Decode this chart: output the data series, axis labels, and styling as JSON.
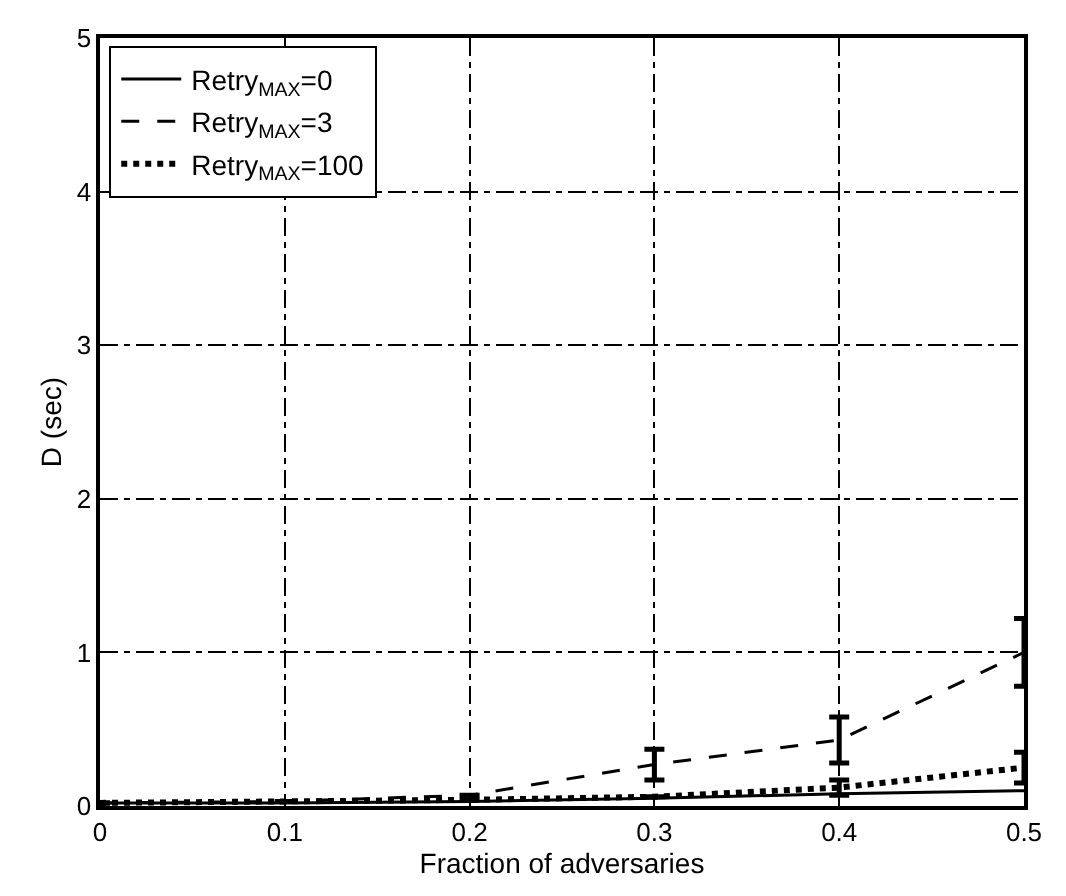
{
  "chart_data": {
    "type": "line",
    "xlabel": "Fraction of adversaries",
    "ylabel": "D (sec)",
    "x": [
      0,
      0.1,
      0.2,
      0.3,
      0.4,
      0.5
    ],
    "series": [
      {
        "name": "Retry$_{MAX}$=0",
        "color": "#000000",
        "line_style": "solid",
        "values": [
          0.02,
          0.02,
          0.03,
          0.05,
          0.08,
          0.1
        ]
      },
      {
        "name": "Retry$_{MAX}$=3",
        "color": "#000000",
        "line_style": "dashed",
        "values": [
          0.02,
          0.03,
          0.07,
          0.27,
          0.43,
          1.0
        ],
        "errors": [
          null,
          null,
          null,
          0.1,
          [
            0.28,
            0.58
          ],
          0.22
        ]
      },
      {
        "name": "Retry$_{MAX}$=100",
        "color": "#000000",
        "line_style": "dotted",
        "values": [
          0.02,
          0.03,
          0.04,
          0.06,
          0.12,
          0.25
        ],
        "errors": [
          null,
          null,
          null,
          null,
          0.05,
          0.1
        ]
      }
    ],
    "xlim": [
      0,
      0.5
    ],
    "ylim": [
      0,
      5
    ],
    "xticks": [
      0,
      0.1,
      0.2,
      0.3,
      0.4,
      0.5
    ],
    "yticks": [
      0,
      1,
      2,
      3,
      4,
      5
    ],
    "grid": true,
    "legend": "top left",
    "marker": "none"
  }
}
